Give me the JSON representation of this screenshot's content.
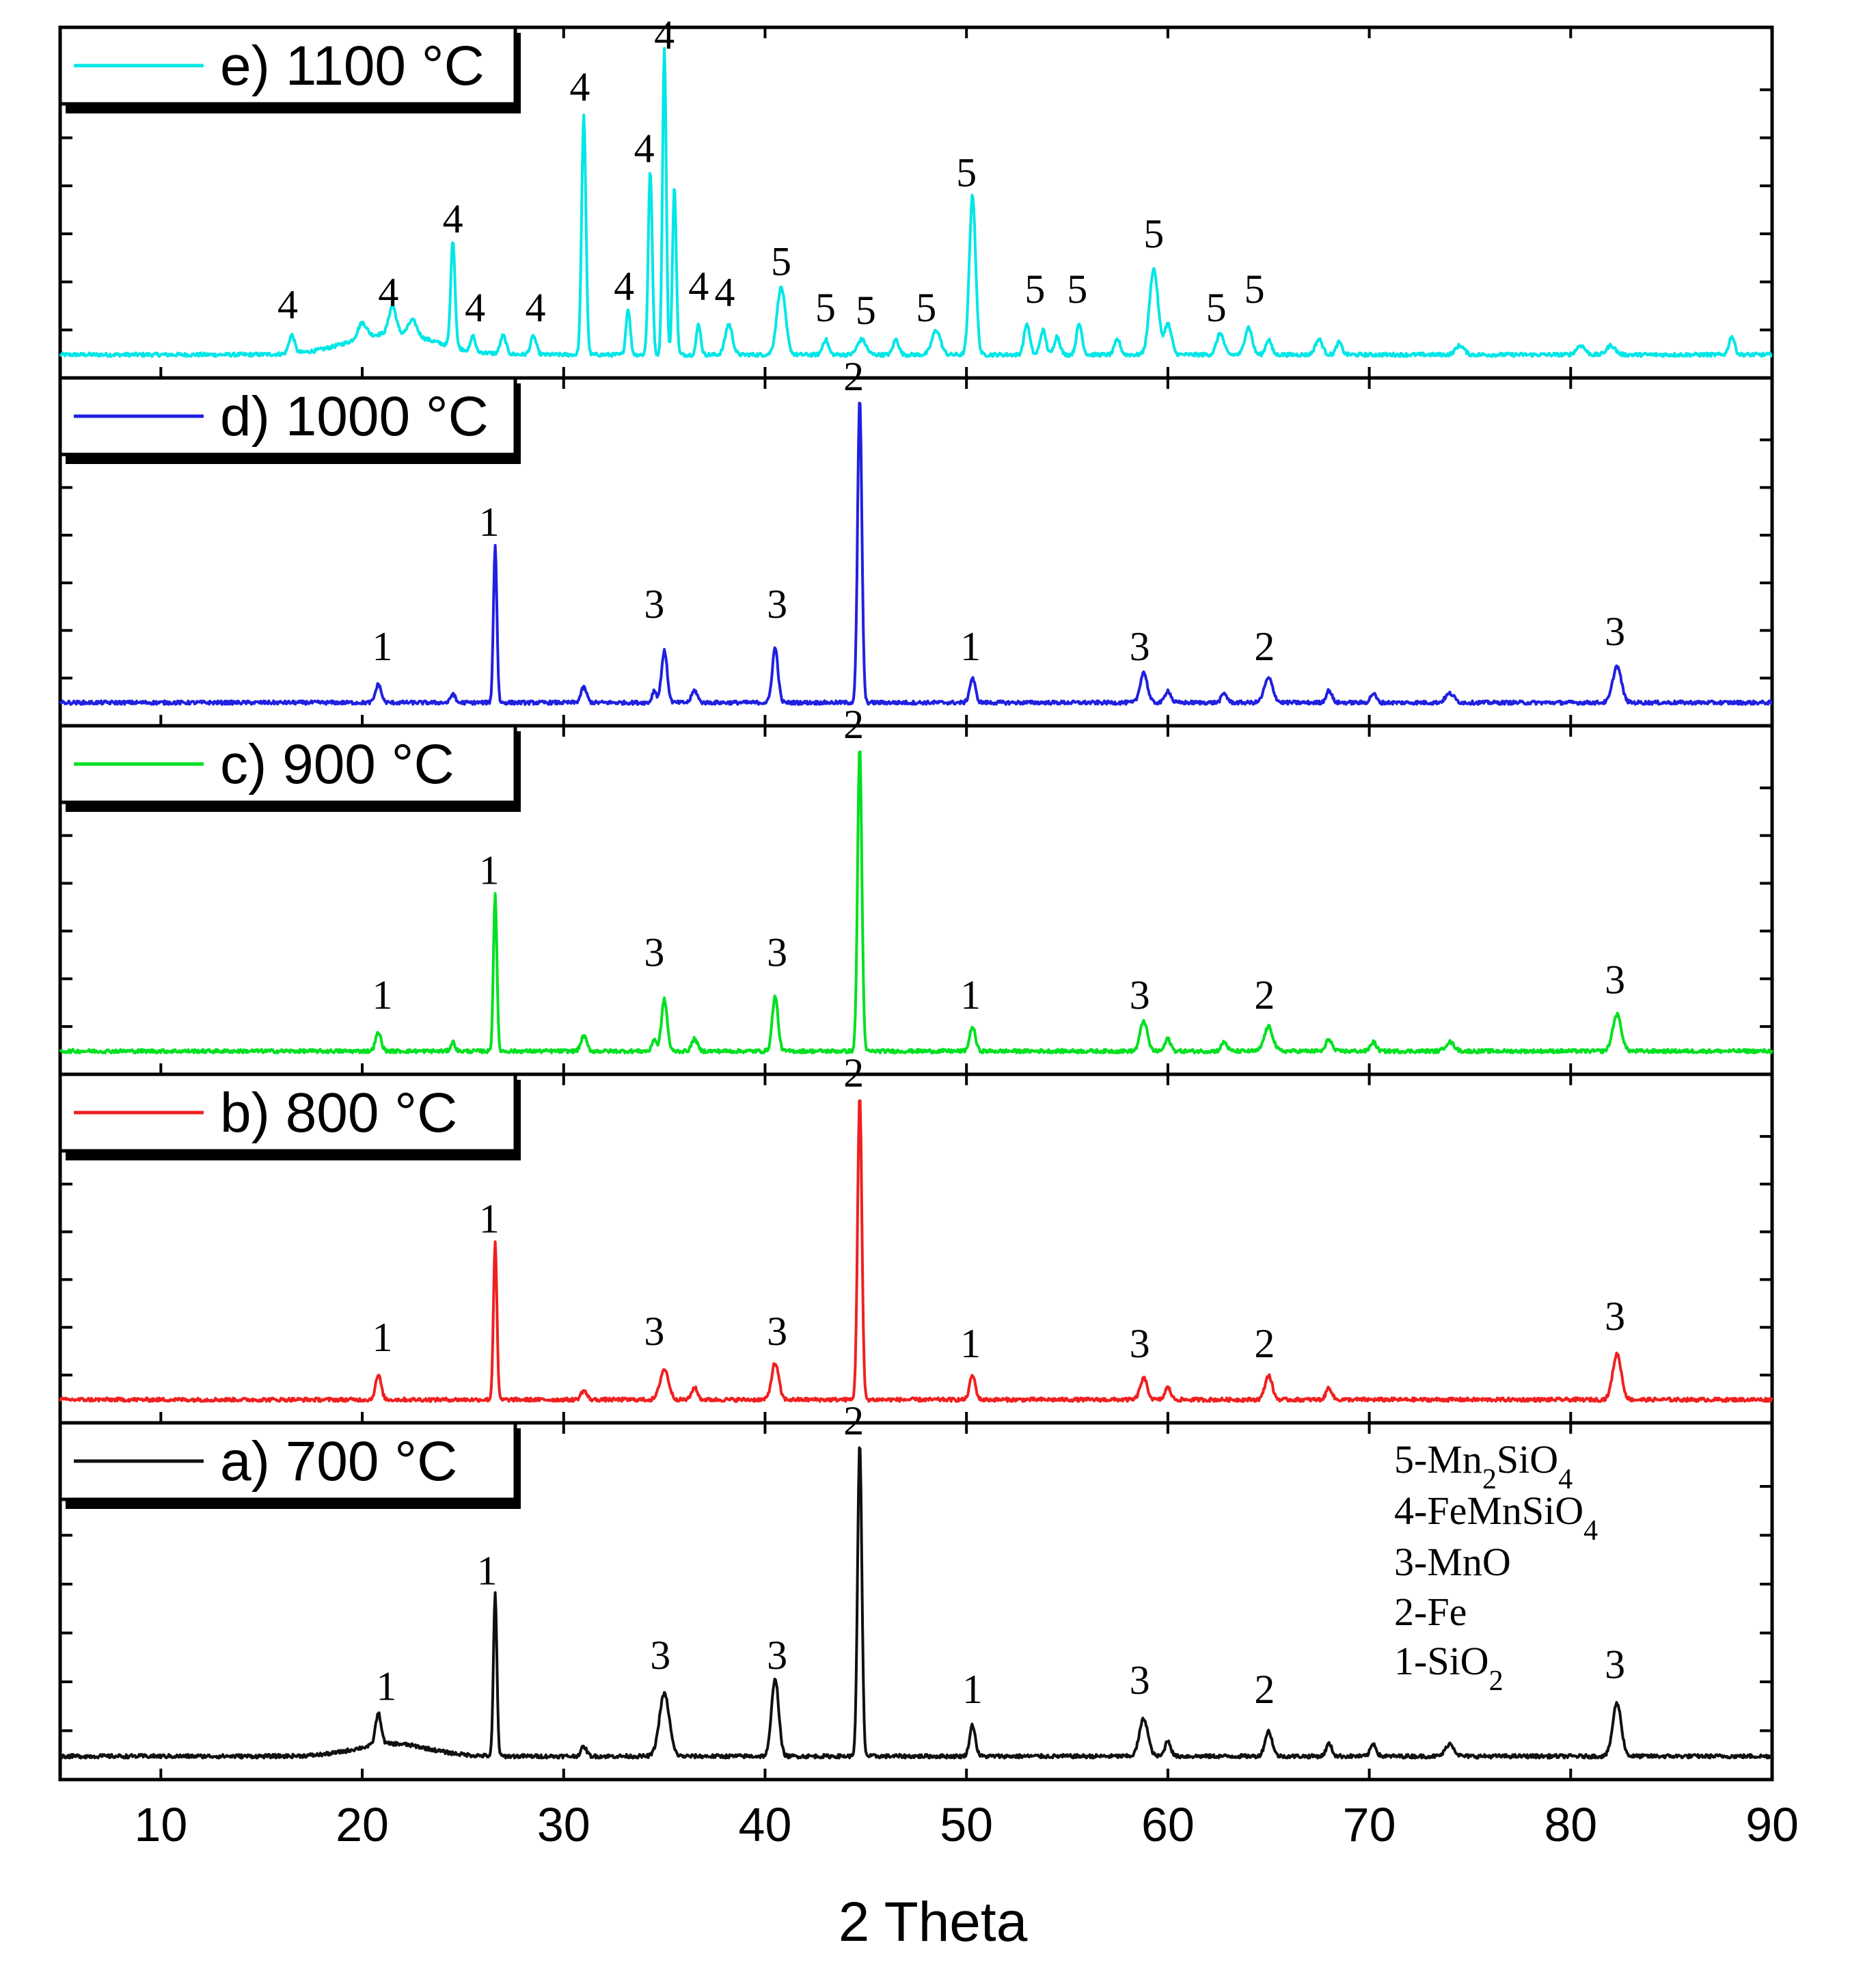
{
  "chart_data": {
    "type": "line",
    "title": "",
    "xlabel": "2 Theta",
    "ylabel": "",
    "xlim": [
      5,
      90
    ],
    "x_ticks": [
      10,
      20,
      30,
      40,
      50,
      60,
      70,
      80,
      90
    ],
    "phase_key": [
      {
        "id": "5",
        "prefix": "5-Mn",
        "sub1": "2",
        "mid": "SiO",
        "sub2": "4"
      },
      {
        "id": "4",
        "prefix": "4-FeMnSiO",
        "sub1": "4",
        "mid": "",
        "sub2": ""
      },
      {
        "id": "3",
        "prefix": "3-MnO",
        "sub1": "",
        "mid": "",
        "sub2": ""
      },
      {
        "id": "2",
        "prefix": "2-Fe",
        "sub1": "",
        "mid": "",
        "sub2": ""
      },
      {
        "id": "1",
        "prefix": "1-SiO",
        "sub1": "2",
        "mid": "",
        "sub2": ""
      }
    ],
    "series": [
      {
        "name": "e) 1100 °C",
        "color": "#00e6e6",
        "baseline": 0.02,
        "broad": [
          [
            21.5,
            0.07,
            3.0
          ]
        ],
        "peaks": [
          [
            16.5,
            0.06,
            0.2
          ],
          [
            20.0,
            0.05,
            0.3
          ],
          [
            21.5,
            0.09,
            0.25
          ],
          [
            22.5,
            0.05,
            0.3
          ],
          [
            24.5,
            0.35,
            0.15
          ],
          [
            25.5,
            0.05,
            0.15
          ],
          [
            27.0,
            0.06,
            0.2
          ],
          [
            28.5,
            0.06,
            0.2
          ],
          [
            31.0,
            0.78,
            0.15
          ],
          [
            33.2,
            0.15,
            0.15
          ],
          [
            34.3,
            0.6,
            0.14
          ],
          [
            35.0,
            1.0,
            0.13
          ],
          [
            35.5,
            0.55,
            0.13
          ],
          [
            36.7,
            0.1,
            0.15
          ],
          [
            38.2,
            0.1,
            0.25
          ],
          [
            40.8,
            0.22,
            0.3
          ],
          [
            43.0,
            0.05,
            0.2
          ],
          [
            44.8,
            0.05,
            0.3
          ],
          [
            46.5,
            0.05,
            0.2
          ],
          [
            48.5,
            0.08,
            0.3
          ],
          [
            50.3,
            0.52,
            0.22
          ],
          [
            53.0,
            0.1,
            0.2
          ],
          [
            53.8,
            0.08,
            0.2
          ],
          [
            54.5,
            0.06,
            0.2
          ],
          [
            55.6,
            0.1,
            0.2
          ],
          [
            57.5,
            0.05,
            0.2
          ],
          [
            59.3,
            0.28,
            0.3
          ],
          [
            60.0,
            0.1,
            0.25
          ],
          [
            62.6,
            0.07,
            0.25
          ],
          [
            64.0,
            0.09,
            0.25
          ],
          [
            65.0,
            0.05,
            0.2
          ],
          [
            67.5,
            0.05,
            0.25
          ],
          [
            68.5,
            0.04,
            0.2
          ],
          [
            74.5,
            0.03,
            0.3
          ],
          [
            80.5,
            0.03,
            0.3
          ],
          [
            82.0,
            0.03,
            0.3
          ],
          [
            88.0,
            0.06,
            0.2
          ]
        ],
        "labels": [
          {
            "x": 16.3,
            "y": 0.14,
            "t": "4"
          },
          {
            "x": 21.3,
            "y": 0.18,
            "t": "4"
          },
          {
            "x": 24.5,
            "y": 0.42,
            "t": "4"
          },
          {
            "x": 25.6,
            "y": 0.13,
            "t": "4"
          },
          {
            "x": 28.6,
            "y": 0.13,
            "t": "4"
          },
          {
            "x": 30.8,
            "y": 0.85,
            "t": "4"
          },
          {
            "x": 33.0,
            "y": 0.2,
            "t": "4"
          },
          {
            "x": 34.0,
            "y": 0.65,
            "t": "4"
          },
          {
            "x": 35.0,
            "y": 1.02,
            "t": "4"
          },
          {
            "x": 36.7,
            "y": 0.2,
            "t": "4"
          },
          {
            "x": 38.0,
            "y": 0.18,
            "t": "4"
          },
          {
            "x": 40.8,
            "y": 0.28,
            "t": "5"
          },
          {
            "x": 43.0,
            "y": 0.13,
            "t": "5"
          },
          {
            "x": 45.0,
            "y": 0.12,
            "t": "5"
          },
          {
            "x": 48.0,
            "y": 0.13,
            "t": "5"
          },
          {
            "x": 50.0,
            "y": 0.57,
            "t": "5"
          },
          {
            "x": 53.4,
            "y": 0.19,
            "t": "5"
          },
          {
            "x": 55.5,
            "y": 0.19,
            "t": "5"
          },
          {
            "x": 59.3,
            "y": 0.37,
            "t": "5"
          },
          {
            "x": 62.4,
            "y": 0.13,
            "t": "5"
          },
          {
            "x": 64.3,
            "y": 0.19,
            "t": "5"
          }
        ]
      },
      {
        "name": "d) 1000 °C",
        "color": "#2020e0",
        "baseline": 0.02,
        "broad": [],
        "peaks": [
          [
            20.8,
            0.06,
            0.2
          ],
          [
            24.5,
            0.03,
            0.15
          ],
          [
            26.6,
            0.52,
            0.12
          ],
          [
            31.0,
            0.05,
            0.2
          ],
          [
            34.5,
            0.04,
            0.15
          ],
          [
            35.0,
            0.17,
            0.2
          ],
          [
            36.5,
            0.04,
            0.2
          ],
          [
            40.5,
            0.18,
            0.2
          ],
          [
            44.7,
            1.0,
            0.15
          ],
          [
            50.3,
            0.08,
            0.2
          ],
          [
            58.8,
            0.1,
            0.25
          ],
          [
            60.0,
            0.04,
            0.2
          ],
          [
            62.8,
            0.03,
            0.2
          ],
          [
            65.0,
            0.08,
            0.3
          ],
          [
            68.0,
            0.04,
            0.2
          ],
          [
            70.2,
            0.03,
            0.2
          ],
          [
            74.0,
            0.03,
            0.3
          ],
          [
            82.3,
            0.12,
            0.3
          ]
        ],
        "labels": [
          {
            "x": 21.0,
            "y": 0.16,
            "t": "1"
          },
          {
            "x": 26.3,
            "y": 0.57,
            "t": "1"
          },
          {
            "x": 34.5,
            "y": 0.3,
            "t": "3"
          },
          {
            "x": 40.6,
            "y": 0.3,
            "t": "3"
          },
          {
            "x": 44.4,
            "y": 1.05,
            "t": "2"
          },
          {
            "x": 50.2,
            "y": 0.16,
            "t": "1"
          },
          {
            "x": 58.6,
            "y": 0.16,
            "t": "3"
          },
          {
            "x": 64.8,
            "y": 0.16,
            "t": "2"
          },
          {
            "x": 82.2,
            "y": 0.21,
            "t": "3"
          }
        ]
      },
      {
        "name": "c) 900 °C",
        "color": "#00e020",
        "baseline": 0.02,
        "broad": [],
        "peaks": [
          [
            20.8,
            0.06,
            0.2
          ],
          [
            24.5,
            0.03,
            0.15
          ],
          [
            26.6,
            0.52,
            0.12
          ],
          [
            31.0,
            0.05,
            0.2
          ],
          [
            34.5,
            0.04,
            0.15
          ],
          [
            35.0,
            0.17,
            0.2
          ],
          [
            36.5,
            0.04,
            0.2
          ],
          [
            40.5,
            0.18,
            0.2
          ],
          [
            44.7,
            1.0,
            0.15
          ],
          [
            50.3,
            0.08,
            0.2
          ],
          [
            58.8,
            0.1,
            0.25
          ],
          [
            60.0,
            0.04,
            0.2
          ],
          [
            62.8,
            0.03,
            0.2
          ],
          [
            65.0,
            0.08,
            0.3
          ],
          [
            68.0,
            0.04,
            0.2
          ],
          [
            70.2,
            0.03,
            0.2
          ],
          [
            74.0,
            0.03,
            0.3
          ],
          [
            82.3,
            0.12,
            0.3
          ]
        ],
        "labels": [
          {
            "x": 21.0,
            "y": 0.16,
            "t": "1"
          },
          {
            "x": 26.3,
            "y": 0.57,
            "t": "1"
          },
          {
            "x": 34.5,
            "y": 0.3,
            "t": "3"
          },
          {
            "x": 40.6,
            "y": 0.3,
            "t": "3"
          },
          {
            "x": 44.4,
            "y": 1.05,
            "t": "2"
          },
          {
            "x": 50.2,
            "y": 0.16,
            "t": "1"
          },
          {
            "x": 58.6,
            "y": 0.16,
            "t": "3"
          },
          {
            "x": 64.8,
            "y": 0.16,
            "t": "2"
          },
          {
            "x": 82.2,
            "y": 0.21,
            "t": "3"
          }
        ]
      },
      {
        "name": "b) 800 °C",
        "color": "#f02020",
        "baseline": 0.02,
        "broad": [],
        "peaks": [
          [
            20.8,
            0.08,
            0.2
          ],
          [
            26.6,
            0.52,
            0.12
          ],
          [
            31.0,
            0.03,
            0.2
          ],
          [
            35.0,
            0.1,
            0.3
          ],
          [
            36.5,
            0.04,
            0.2
          ],
          [
            40.5,
            0.12,
            0.25
          ],
          [
            44.7,
            1.0,
            0.15
          ],
          [
            50.3,
            0.08,
            0.2
          ],
          [
            58.8,
            0.07,
            0.25
          ],
          [
            60.0,
            0.04,
            0.2
          ],
          [
            65.0,
            0.08,
            0.25
          ],
          [
            68.0,
            0.04,
            0.2
          ],
          [
            82.3,
            0.15,
            0.3
          ]
        ],
        "labels": [
          {
            "x": 21.0,
            "y": 0.18,
            "t": "1"
          },
          {
            "x": 26.3,
            "y": 0.57,
            "t": "1"
          },
          {
            "x": 34.5,
            "y": 0.2,
            "t": "3"
          },
          {
            "x": 40.6,
            "y": 0.2,
            "t": "3"
          },
          {
            "x": 44.4,
            "y": 1.05,
            "t": "2"
          },
          {
            "x": 50.2,
            "y": 0.16,
            "t": "1"
          },
          {
            "x": 58.6,
            "y": 0.16,
            "t": "3"
          },
          {
            "x": 64.8,
            "y": 0.16,
            "t": "2"
          },
          {
            "x": 82.2,
            "y": 0.25,
            "t": "3"
          }
        ]
      },
      {
        "name": "a) 700 °C",
        "color": "#101010",
        "baseline": 0.02,
        "broad": [
          [
            21.5,
            0.04,
            2.5
          ]
        ],
        "peaks": [
          [
            20.8,
            0.1,
            0.2
          ],
          [
            26.6,
            0.52,
            0.12
          ],
          [
            31.0,
            0.03,
            0.2
          ],
          [
            35.0,
            0.2,
            0.35
          ],
          [
            40.5,
            0.25,
            0.25
          ],
          [
            44.7,
            1.0,
            0.15
          ],
          [
            50.3,
            0.1,
            0.2
          ],
          [
            58.8,
            0.12,
            0.3
          ],
          [
            60.0,
            0.05,
            0.2
          ],
          [
            65.0,
            0.08,
            0.25
          ],
          [
            68.0,
            0.04,
            0.2
          ],
          [
            70.2,
            0.04,
            0.2
          ],
          [
            74.0,
            0.04,
            0.3
          ],
          [
            82.3,
            0.17,
            0.3
          ]
        ],
        "labels": [
          {
            "x": 21.2,
            "y": 0.2,
            "t": "1"
          },
          {
            "x": 26.2,
            "y": 0.57,
            "t": "1"
          },
          {
            "x": 34.8,
            "y": 0.3,
            "t": "3"
          },
          {
            "x": 40.6,
            "y": 0.3,
            "t": "3"
          },
          {
            "x": 44.4,
            "y": 1.05,
            "t": "2"
          },
          {
            "x": 50.3,
            "y": 0.19,
            "t": "1"
          },
          {
            "x": 58.6,
            "y": 0.22,
            "t": "3"
          },
          {
            "x": 64.8,
            "y": 0.19,
            "t": "2"
          },
          {
            "x": 82.2,
            "y": 0.27,
            "t": "3"
          }
        ]
      }
    ]
  }
}
